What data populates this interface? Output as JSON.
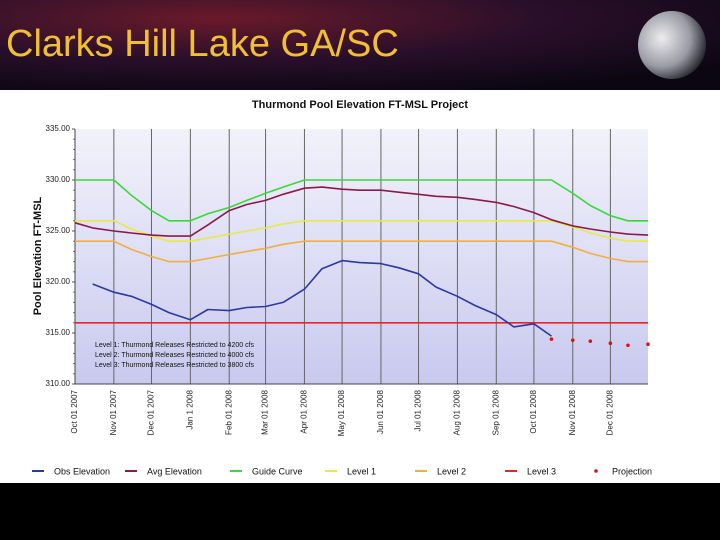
{
  "slide_title": "Clarks Hill Lake GA/SC",
  "chart_data": {
    "type": "line",
    "title": "Thurmond Pool Elevation FT-MSL Project",
    "y_label": "Pool Elevation FT-MSL",
    "x": [
      "2007-10-01",
      "2007-10-15",
      "2007-11-01",
      "2007-11-15",
      "2007-12-01",
      "2007-12-15",
      "2008-01-01",
      "2008-01-15",
      "2008-02-01",
      "2008-02-15",
      "2008-03-01",
      "2008-03-15",
      "2008-04-01",
      "2008-04-15",
      "2008-05-01",
      "2008-05-15",
      "2008-06-01",
      "2008-06-15",
      "2008-07-01",
      "2008-07-15",
      "2008-08-01",
      "2008-08-15",
      "2008-09-01",
      "2008-09-15",
      "2008-10-01",
      "2008-10-15",
      "2008-11-01",
      "2008-11-15",
      "2008-12-01",
      "2008-12-15",
      "2008-12-31"
    ],
    "xlim": [
      "2007-10-01",
      "2008-12-31"
    ],
    "xticks": [
      {
        "value": "2007-10-01",
        "label": "Oct 01 2007"
      },
      {
        "value": "2007-11-01",
        "label": "Nov 01 2007"
      },
      {
        "value": "2007-12-01",
        "label": "Dec 01 2007"
      },
      {
        "value": "2008-01-01",
        "label": "Jan 1 2008"
      },
      {
        "value": "2008-02-01",
        "label": "Feb 01 2008"
      },
      {
        "value": "2008-03-01",
        "label": "Mar 01 2008"
      },
      {
        "value": "2008-04-01",
        "label": "Apr 01 2008"
      },
      {
        "value": "2008-05-01",
        "label": "May 01 2008"
      },
      {
        "value": "2008-06-01",
        "label": "Jun 01 2008"
      },
      {
        "value": "2008-07-01",
        "label": "Jul 01 2008"
      },
      {
        "value": "2008-08-01",
        "label": "Aug 01 2008"
      },
      {
        "value": "2008-09-01",
        "label": "Sep 01 2008"
      },
      {
        "value": "2008-10-01",
        "label": "Oct 01 2008"
      },
      {
        "value": "2008-11-01",
        "label": "Nov 01 2008"
      },
      {
        "value": "2008-12-01",
        "label": "Dec 01 2008"
      }
    ],
    "ylim": [
      310,
      335
    ],
    "yticks": [
      {
        "value": 310,
        "label": "310.00"
      },
      {
        "value": 315,
        "label": "315.00"
      },
      {
        "value": 320,
        "label": "320.00"
      },
      {
        "value": 325,
        "label": "325.00"
      },
      {
        "value": 330,
        "label": "330.00"
      },
      {
        "value": 335,
        "label": "335.00"
      }
    ],
    "grid": true,
    "legend": "bottom",
    "annotations": [
      "Level 1: Thurmond Releases Restricted to 4200 cfs",
      "Level 2: Thurmond Releases Restricted to 4000 cfs",
      "Level 3: Thurmond Releases Restricted to 3800 cfs"
    ],
    "series": [
      {
        "name": "Obs Elevation",
        "color": "#2b3a9e",
        "marker": "line",
        "values": [
          null,
          319.8,
          319.0,
          318.6,
          317.8,
          317.0,
          316.3,
          317.3,
          317.2,
          317.5,
          317.6,
          318.0,
          319.3,
          321.3,
          322.1,
          321.9,
          321.8,
          321.4,
          320.8,
          319.5,
          318.6,
          317.7,
          316.8,
          315.6,
          315.9,
          314.7,
          null,
          null,
          null,
          null,
          null
        ]
      },
      {
        "name": "Avg Elevation",
        "color": "#8b1a4a",
        "marker": "line",
        "values": [
          325.8,
          325.3,
          325.0,
          324.8,
          324.6,
          324.5,
          324.5,
          325.6,
          327.0,
          327.6,
          328.0,
          328.6,
          329.2,
          329.3,
          329.1,
          329.0,
          329.0,
          328.8,
          328.6,
          328.4,
          328.3,
          328.1,
          327.8,
          327.4,
          326.8,
          326.1,
          325.5,
          325.2,
          324.9,
          324.7,
          324.6
        ]
      },
      {
        "name": "Guide Curve",
        "color": "#3ad83a",
        "marker": "line",
        "values": [
          330,
          330,
          330,
          328.5,
          327,
          326,
          326,
          326.7,
          327.3,
          328,
          328.7,
          329.3,
          330,
          330,
          330,
          330,
          330,
          330,
          330,
          330,
          330,
          330,
          330,
          330,
          330,
          330,
          328.7,
          327.5,
          326.5,
          326,
          326
        ]
      },
      {
        "name": "Level 1",
        "color": "#e8e848",
        "marker": "line",
        "values": [
          326,
          326,
          326,
          325.2,
          324.5,
          324,
          324,
          324.3,
          324.7,
          325,
          325.3,
          325.7,
          326,
          326,
          326,
          326,
          326,
          326,
          326,
          326,
          326,
          326,
          326,
          326,
          326,
          326,
          325.4,
          324.8,
          324.3,
          324,
          324
        ]
      },
      {
        "name": "Level 2",
        "color": "#f0b040",
        "marker": "line",
        "values": [
          324,
          324,
          324,
          323.2,
          322.5,
          322,
          322,
          322.3,
          322.7,
          323,
          323.3,
          323.7,
          324,
          324,
          324,
          324,
          324,
          324,
          324,
          324,
          324,
          324,
          324,
          324,
          324,
          324,
          323.4,
          322.8,
          322.3,
          322,
          322
        ]
      },
      {
        "name": "Level 3",
        "color": "#ee2222",
        "marker": "line",
        "values": [
          316,
          316,
          316,
          316,
          316,
          316,
          316,
          316,
          316,
          316,
          316,
          316,
          316,
          316,
          316,
          316,
          316,
          316,
          316,
          316,
          316,
          316,
          316,
          316,
          316,
          316,
          316,
          316,
          316,
          316,
          316
        ]
      },
      {
        "name": "Projection",
        "color": "#dd1111",
        "marker": "dot",
        "values": [
          null,
          null,
          null,
          null,
          null,
          null,
          null,
          null,
          null,
          null,
          null,
          null,
          null,
          null,
          null,
          null,
          null,
          null,
          null,
          null,
          null,
          null,
          null,
          null,
          null,
          314.4,
          314.3,
          314.2,
          314.0,
          313.8,
          313.9
        ]
      }
    ]
  }
}
